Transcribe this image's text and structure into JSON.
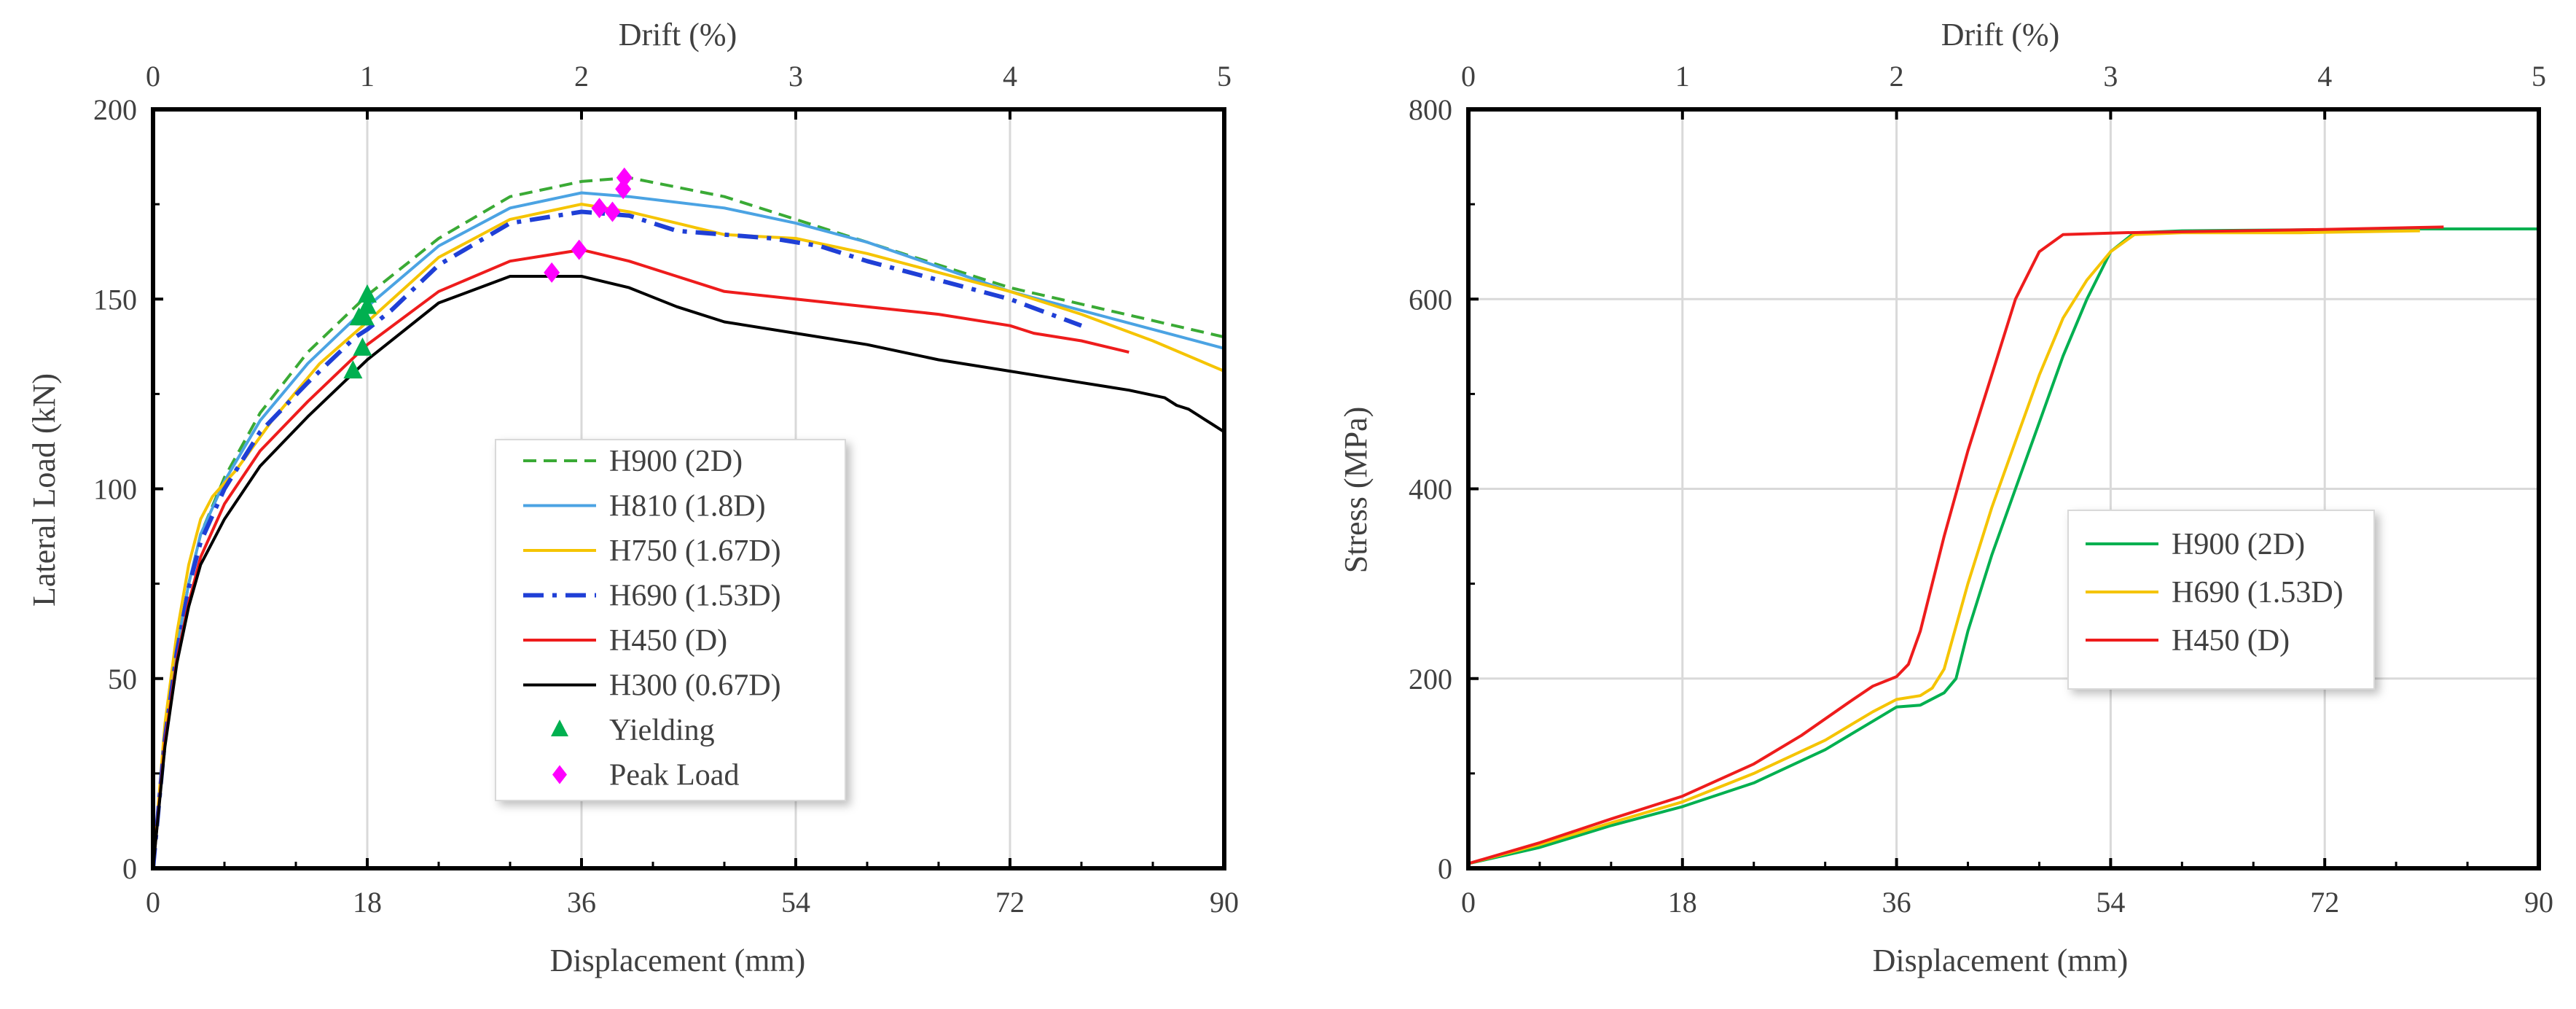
{
  "chart_data": [
    {
      "type": "line",
      "xlabel": "Displacement (mm)",
      "ylabel": "Lateral Load (kN)",
      "top_axis_label": "Drift (%)",
      "xlim": [
        0,
        90
      ],
      "ylim": [
        0,
        200
      ],
      "top_xlim": [
        0,
        5
      ],
      "x_ticks": [
        "0",
        "18",
        "36",
        "54",
        "72",
        "90"
      ],
      "y_ticks": [
        "0",
        "50",
        "100",
        "150",
        "200"
      ],
      "top_ticks": [
        "0",
        "1",
        "2",
        "3",
        "4",
        "5"
      ],
      "grid": "vertical",
      "legend_position": "center-left",
      "series": [
        {
          "name": "H900 (2D)",
          "color": "#3aaa35",
          "style": "dashed",
          "x": [
            0,
            1,
            2,
            3,
            4,
            6,
            9,
            13,
            18,
            24,
            30,
            36,
            40,
            48,
            60,
            72,
            90
          ],
          "y": [
            0,
            35,
            58,
            75,
            88,
            103,
            120,
            136,
            151,
            166,
            177,
            181,
            182,
            177,
            165,
            153,
            140
          ]
        },
        {
          "name": "H810 (1.8D)",
          "color": "#4ba3e3",
          "style": "solid",
          "x": [
            0,
            1,
            2,
            3,
            4,
            6,
            9,
            13,
            18,
            24,
            30,
            36,
            40,
            48,
            54,
            60,
            72,
            90
          ],
          "y": [
            0,
            35,
            58,
            75,
            88,
            102,
            118,
            133,
            148,
            164,
            174,
            178,
            177,
            174,
            170,
            165,
            152,
            137
          ]
        },
        {
          "name": "H750 (1.67D)",
          "color": "#f5c400",
          "style": "solid",
          "x": [
            0,
            1,
            2,
            3,
            4,
            5,
            7,
            10,
            14,
            18,
            24,
            30,
            36,
            40,
            44,
            48,
            54,
            60,
            66,
            72,
            78,
            84,
            90
          ],
          "y": [
            0,
            38,
            62,
            80,
            92,
            98,
            105,
            118,
            133,
            144,
            161,
            171,
            175,
            173,
            170,
            167,
            166,
            162,
            157,
            152,
            146,
            139,
            131
          ]
        },
        {
          "name": "H690 (1.53D)",
          "color": "#1f3fd6",
          "style": "dashdot",
          "x": [
            0,
            1,
            2,
            3,
            4,
            6,
            9,
            13,
            17,
            18,
            20,
            24,
            30,
            36,
            40,
            44,
            48,
            52,
            56,
            60,
            66,
            72,
            78
          ],
          "y": [
            0,
            34,
            57,
            74,
            86,
            100,
            115,
            128,
            140,
            142,
            147,
            159,
            170,
            173,
            172,
            168,
            167,
            166,
            164,
            160,
            155,
            150,
            143
          ]
        },
        {
          "name": "H450 (D)",
          "color": "#ee1c1c",
          "style": "solid",
          "x": [
            0,
            1,
            2,
            3,
            4,
            6,
            9,
            13,
            18,
            24,
            30,
            36,
            40,
            44,
            48,
            54,
            60,
            66,
            72,
            74,
            78,
            82
          ],
          "y": [
            0,
            33,
            55,
            70,
            82,
            96,
            110,
            123,
            138,
            152,
            160,
            163,
            160,
            156,
            152,
            150,
            148,
            146,
            143,
            141,
            139,
            136
          ]
        },
        {
          "name": "H300 (0.67D)",
          "color": "#000000",
          "style": "solid",
          "x": [
            0,
            1,
            2,
            3,
            4,
            6,
            9,
            13,
            18,
            24,
            30,
            36,
            40,
            44,
            48,
            54,
            60,
            66,
            72,
            78,
            82,
            85,
            86,
            87,
            88,
            89,
            90
          ],
          "y": [
            0,
            32,
            54,
            69,
            80,
            92,
            106,
            119,
            134,
            149,
            156,
            156,
            153,
            148,
            144,
            141,
            138,
            134,
            131,
            128,
            126,
            124,
            122,
            121,
            119,
            117,
            115
          ]
        },
        {
          "name": "Yielding",
          "color": "#00b050",
          "style": "marker-triangle",
          "x": [
            16.8,
            17.6,
            17.8,
            18.0,
            18.0,
            17.3
          ],
          "y": [
            131,
            137,
            145,
            148,
            151,
            145
          ]
        },
        {
          "name": "Peak Load",
          "color": "#ff00ff",
          "style": "marker-diamond",
          "x": [
            33.5,
            35.8,
            37.5,
            38.6,
            39.5,
            39.6
          ],
          "y": [
            157,
            163,
            174,
            173,
            179,
            182
          ]
        }
      ]
    },
    {
      "type": "line",
      "xlabel": "Displacement (mm)",
      "ylabel": "Stress (MPa)",
      "top_axis_label": "Drift (%)",
      "xlim": [
        0,
        90
      ],
      "ylim": [
        0,
        800
      ],
      "top_xlim": [
        0,
        5
      ],
      "x_ticks": [
        "0",
        "18",
        "36",
        "54",
        "72",
        "90"
      ],
      "y_ticks": [
        "0",
        "200",
        "400",
        "600",
        "800"
      ],
      "top_ticks": [
        "0",
        "1",
        "2",
        "3",
        "4",
        "5"
      ],
      "grid": "both",
      "legend_position": "center-right",
      "series": [
        {
          "name": "H900 (2D)",
          "color": "#00b050",
          "style": "solid",
          "x": [
            0,
            6,
            12,
            18,
            24,
            30,
            34,
            36,
            38,
            40,
            41,
            42,
            44,
            46,
            48,
            50,
            52,
            54,
            56,
            60,
            70,
            80,
            90
          ],
          "y": [
            5,
            22,
            45,
            65,
            90,
            125,
            155,
            170,
            172,
            185,
            200,
            250,
            330,
            400,
            470,
            540,
            600,
            650,
            670,
            672,
            673,
            674,
            674
          ]
        },
        {
          "name": "H690 (1.53D)",
          "color": "#f5c400",
          "style": "solid",
          "x": [
            0,
            6,
            12,
            18,
            24,
            30,
            34,
            36,
            38,
            39,
            40,
            42,
            44,
            46,
            48,
            50,
            52,
            54,
            56,
            60,
            70,
            80
          ],
          "y": [
            5,
            25,
            48,
            70,
            100,
            135,
            165,
            178,
            182,
            190,
            210,
            300,
            380,
            450,
            520,
            580,
            620,
            650,
            668,
            670,
            670,
            672
          ]
        },
        {
          "name": "H450 (D)",
          "color": "#ee1c1c",
          "style": "solid",
          "x": [
            0,
            6,
            12,
            18,
            24,
            28,
            32,
            34,
            36,
            37,
            38,
            40,
            42,
            44,
            46,
            48,
            50,
            55,
            60,
            70,
            82
          ],
          "y": [
            5,
            27,
            52,
            76,
            110,
            140,
            175,
            192,
            202,
            215,
            250,
            350,
            440,
            520,
            600,
            650,
            668,
            670,
            671,
            673,
            676
          ]
        }
      ]
    }
  ],
  "legend_left": {
    "items": [
      "H900 (2D)",
      "H810 (1.8D)",
      "H750 (1.67D)",
      "H690 (1.53D)",
      "H450 (D)",
      "H300 (0.67D)",
      "Yielding",
      "Peak Load"
    ]
  },
  "legend_right": {
    "items": [
      "H900 (2D)",
      "H690 (1.53D)",
      "H450 (D)"
    ]
  }
}
